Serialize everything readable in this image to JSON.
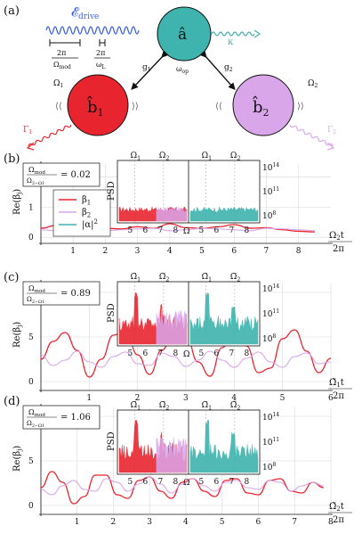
{
  "figure": {
    "panel_labels": [
      "(a)",
      "(b)",
      "(c)",
      "(d)"
    ],
    "schematic": {
      "drive_label": "𝓔",
      "drive_sub": "drive",
      "mod_frac_num": "2π",
      "mod_frac_den": "Ω",
      "mod_frac_den_sub": "mod",
      "L_frac_num": "2π",
      "L_frac_den": "ω",
      "L_frac_den_sub": "L",
      "cavity_label": "â",
      "cavity_freq": "ω",
      "cavity_freq_sub": "op",
      "kappa": "κ",
      "g1": "g",
      "g1_sub": "1",
      "g2": "g",
      "g2_sub": "2",
      "mech1_label": "b̂",
      "mech1_sub": "1",
      "mech2_label": "b̂",
      "mech2_sub": "2",
      "omega1": "Ω",
      "omega1_sub": "1",
      "omega2": "Ω",
      "omega2_sub": "2",
      "gamma1": "Γ",
      "gamma1_sub": "1",
      "gamma2": "Γ",
      "gamma2_sub": "2",
      "colors": {
        "cavity": "#3fb3ad",
        "mech1": "#e8252f",
        "mech2": "#d9a6ea",
        "drive": "#3b5fe0"
      }
    },
    "legend": {
      "beta1": "β",
      "beta1_sub": "1",
      "beta2": "β",
      "beta2_sub": "2",
      "alpha": "|α|",
      "alpha_sup": "2"
    }
  },
  "chart_data": [
    {
      "panel": "(b)",
      "type": "line",
      "ratio_num": "Ω",
      "ratio_num_sub": "mod",
      "ratio_den": "Ω",
      "ratio_den_sub": "2−Ω1",
      "ratio_value": "= 0.02",
      "ylabel": "Re(β",
      "ylabel_sub": "j",
      "xlabel_num": "Ω",
      "xlabel_num_sub": "2",
      "xlabel_t": "t",
      "xlabel_den": "2π",
      "yticks": [
        "0",
        "1",
        "2"
      ],
      "ylim": [
        -0.2,
        2.4
      ],
      "xlim": [
        0,
        9
      ],
      "xticks": [
        "1",
        "2",
        "3",
        "4",
        "5",
        "6",
        "7",
        "8"
      ],
      "series": [
        {
          "name": "β1",
          "color": "#e8252f",
          "x": [
            0,
            0.5,
            1,
            1.5,
            2,
            2.5,
            3,
            3.5,
            4,
            4.5,
            5,
            5.5,
            6,
            6.5,
            7,
            7.5,
            8,
            8.5
          ],
          "y": [
            0.3,
            0.4,
            0.45,
            0.35,
            0.3,
            0.28,
            0.35,
            0.3,
            0.45,
            0.32,
            0.3,
            0.35,
            0.42,
            0.3,
            0.32,
            0.25,
            0.2,
            0.18
          ]
        },
        {
          "name": "β2",
          "color": "#d9a6ea",
          "x": [
            0,
            0.5,
            1,
            1.5,
            2,
            2.5,
            3,
            3.5,
            4,
            4.5,
            5,
            5.5,
            6,
            6.5,
            7,
            7.5,
            8,
            8.5
          ],
          "y": [
            0.25,
            0.22,
            0.28,
            0.3,
            0.22,
            0.25,
            0.28,
            0.3,
            0.22,
            0.25,
            0.3,
            0.28,
            0.25,
            0.22,
            0.3,
            0.28,
            0.25,
            0.22
          ]
        }
      ],
      "inset": {
        "ylabel": "PSD",
        "yticks": [
          "10",
          "10",
          "10"
        ],
        "ytick_exps": [
          "8",
          "11",
          "14"
        ],
        "xticks_left": [
          "5",
          "6",
          "7",
          "8"
        ],
        "xticks_right": [
          "5",
          "6",
          "7",
          "8"
        ],
        "xlabel": "Ω",
        "top_labels": [
          "Ω",
          "Ω",
          "Ω",
          "Ω"
        ],
        "top_subs": [
          "1",
          "2",
          "1",
          "2"
        ]
      }
    },
    {
      "panel": "(c)",
      "type": "line",
      "ratio_num": "Ω",
      "ratio_num_sub": "mod",
      "ratio_den": "Ω",
      "ratio_den_sub": "2−Ω1",
      "ratio_value": "= 0.89",
      "ylabel": "Re(β",
      "ylabel_sub": "j",
      "xlabel_num": "Ω̃",
      "xlabel_num_sub": "1",
      "xlabel_t": "t",
      "xlabel_den": "2π",
      "yticks": [
        "0",
        "5",
        "10"
      ],
      "ylim": [
        -1,
        11
      ],
      "xlim": [
        0,
        6
      ],
      "xticks": [
        "1",
        "2",
        "3",
        "4",
        "5",
        "6"
      ],
      "series": [
        {
          "name": "β1",
          "color": "#e8252f",
          "x": [
            0,
            0.25,
            0.5,
            0.75,
            1,
            1.25,
            1.5,
            1.75,
            2,
            2.25,
            2.5,
            2.75,
            3,
            3.25,
            3.5,
            3.75,
            4,
            4.25,
            4.5,
            4.75,
            5,
            5.25,
            5.5,
            5.75,
            6
          ],
          "y": [
            2.5,
            4.5,
            5.5,
            3.5,
            0.5,
            2.5,
            5.2,
            5.8,
            3.0,
            0.8,
            3.5,
            5.6,
            5.2,
            2.2,
            0.6,
            3.8,
            6.0,
            4.0,
            1.0,
            1.5,
            4.8,
            5.8,
            3.4,
            1.0,
            2.6
          ]
        },
        {
          "name": "β2",
          "color": "#d9a6ea",
          "x": [
            0,
            0.25,
            0.5,
            0.75,
            1,
            1.25,
            1.5,
            1.75,
            2,
            2.25,
            2.5,
            2.75,
            3,
            3.25,
            3.5,
            3.75,
            4,
            4.25,
            4.5,
            4.75,
            5,
            5.25,
            5.5,
            5.75,
            6
          ],
          "y": [
            3.0,
            1.8,
            2.4,
            3.4,
            2.2,
            1.6,
            2.8,
            3.3,
            2.0,
            1.8,
            3.2,
            2.8,
            1.7,
            2.4,
            3.4,
            2.4,
            1.6,
            2.6,
            3.3,
            2.2,
            1.6,
            2.8,
            3.2,
            2.0,
            2.2
          ]
        }
      ],
      "inset": {
        "ylabel": "PSD",
        "yticks": [
          "10",
          "10",
          "10"
        ],
        "ytick_exps": [
          "8",
          "11",
          "14"
        ],
        "xticks_left": [
          "5",
          "6",
          "7",
          "8"
        ],
        "xticks_right": [
          "5",
          "6",
          "7",
          "8"
        ],
        "xlabel": "Ω",
        "top_labels": [
          "Ω̃",
          "Ω̃",
          "Ω̃",
          "Ω̃"
        ],
        "top_subs": [
          "1",
          "2",
          "1",
          "2"
        ]
      }
    },
    {
      "panel": "(d)",
      "type": "line",
      "ratio_num": "Ω",
      "ratio_num_sub": "mod",
      "ratio_den": "Ω",
      "ratio_den_sub": "2−Ω1",
      "ratio_value": "= 1.06",
      "ylabel": "Re(β",
      "ylabel_sub": "j",
      "xlabel_num": "Ω̃",
      "xlabel_num_sub": "2",
      "xlabel_t": "t",
      "xlabel_den": "2π",
      "yticks": [
        "0",
        "5",
        "10"
      ],
      "ylim": [
        -1,
        11
      ],
      "xlim": [
        0,
        8
      ],
      "xticks": [
        "1",
        "2",
        "3",
        "4",
        "5",
        "6",
        "7",
        "8"
      ],
      "series": [
        {
          "name": "β1",
          "color": "#e8252f",
          "x": [
            0,
            0.3,
            0.6,
            0.9,
            1.2,
            1.5,
            1.8,
            2.1,
            2.4,
            2.7,
            3,
            3.3,
            3.6,
            3.9,
            4.2,
            4.5,
            4.8,
            5.1,
            5.4,
            5.7,
            6,
            6.3,
            6.6,
            6.9,
            7.2,
            7.5,
            7.8
          ],
          "y": [
            2.0,
            3.8,
            2.6,
            0.2,
            1.0,
            3.4,
            3.4,
            1.2,
            0.8,
            2.8,
            3.2,
            1.6,
            0.8,
            2.6,
            3.0,
            1.6,
            1.0,
            2.8,
            3.0,
            1.4,
            1.2,
            2.8,
            3.0,
            1.6,
            1.4,
            2.6,
            2.0
          ]
        },
        {
          "name": "β2",
          "color": "#d9a6ea",
          "x": [
            0,
            0.3,
            0.6,
            0.9,
            1.2,
            1.5,
            1.8,
            2.1,
            2.4,
            2.7,
            3,
            3.3,
            3.6,
            3.9,
            4.2,
            4.5,
            4.8,
            5.1,
            5.4,
            5.7,
            6,
            6.3,
            6.6,
            6.9,
            7.2,
            7.5,
            7.8
          ],
          "y": [
            1.8,
            1.2,
            2.2,
            2.8,
            1.8,
            1.6,
            3.0,
            2.6,
            1.6,
            2.4,
            3.2,
            2.4,
            1.4,
            2.4,
            3.0,
            2.2,
            1.6,
            2.6,
            2.8,
            2.0,
            1.8,
            2.8,
            2.6,
            1.6,
            2.2,
            2.6,
            2.2
          ]
        }
      ],
      "inset": {
        "ylabel": "PSD",
        "yticks": [
          "10",
          "10",
          "10"
        ],
        "ytick_exps": [
          "8",
          "11",
          "14"
        ],
        "xticks_left": [
          "5",
          "6",
          "7",
          "8"
        ],
        "xticks_right": [
          "5",
          "6",
          "7",
          "8"
        ],
        "xlabel": "Ω",
        "top_labels": [
          "Ω̃",
          "Ω̃",
          "Ω̃",
          "Ω̃"
        ],
        "top_subs": [
          "1",
          "2",
          "1",
          "2"
        ]
      }
    }
  ]
}
